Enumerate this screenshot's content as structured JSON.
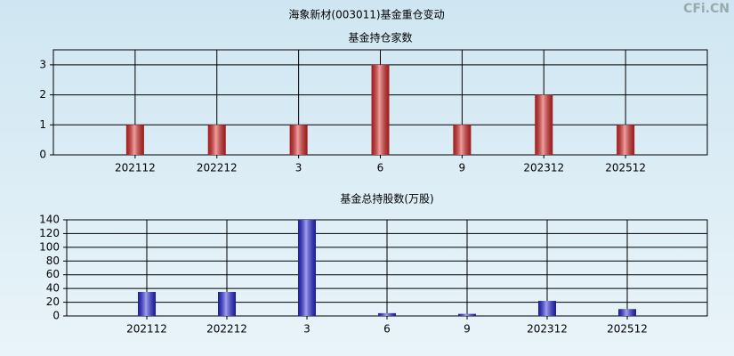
{
  "title": "海象新材(003011)基金重仓变动",
  "watermark": "CFi.CN",
  "chart_data": [
    {
      "type": "bar",
      "title": "基金持仓家数",
      "categories": [
        "202112",
        "202212",
        "3",
        "6",
        "9",
        "202312",
        "202512"
      ],
      "values": [
        1,
        1,
        1,
        3,
        1,
        2,
        1
      ],
      "color": "#e02828",
      "ylim": [
        0,
        3.5
      ],
      "yticks": [
        0,
        1,
        2,
        3
      ],
      "grid": true
    },
    {
      "type": "bar",
      "title": "基金总持股数(万股)",
      "categories": [
        "202112",
        "202212",
        "3",
        "6",
        "9",
        "202312",
        "202512"
      ],
      "values": [
        35,
        35,
        140,
        4,
        3,
        22,
        10
      ],
      "color": "#2828e0",
      "ylim": [
        0,
        140
      ],
      "yticks": [
        0,
        20,
        40,
        60,
        80,
        100,
        120,
        140
      ],
      "grid": true
    }
  ]
}
